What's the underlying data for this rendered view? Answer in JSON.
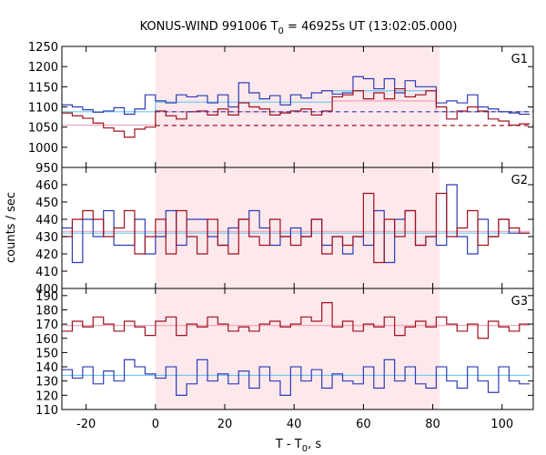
{
  "chart_data": {
    "type": "line",
    "title": {
      "prefix": "KONUS-WIND 991006 T",
      "sub": "0",
      "suffix": " = 46925s UT (13:02:05.000)"
    },
    "ylabel": "counts / sec",
    "xlabel": {
      "prefix": "T - T",
      "sub": "0",
      "suffix": ", s"
    },
    "xlim": [
      -27,
      109
    ],
    "x_ticks": [
      -20,
      0,
      20,
      40,
      60,
      80,
      100
    ],
    "x_tick_labels": [
      "-20",
      "0",
      "20",
      "40",
      "60",
      "80",
      "100"
    ],
    "shaded_interval": {
      "x": [
        0,
        82
      ],
      "color": "#fde8ec"
    },
    "bin_edges": [
      -27,
      -24,
      -21,
      -18,
      -15,
      -12,
      -9,
      -6,
      -3,
      0,
      3,
      6,
      9,
      12,
      15,
      18,
      21,
      24,
      27,
      30,
      33,
      36,
      39,
      42,
      45,
      48,
      51,
      54,
      57,
      60,
      63,
      66,
      69,
      72,
      75,
      78,
      81,
      84,
      87,
      90,
      93,
      96,
      99,
      102,
      105,
      108
    ],
    "colors": {
      "red_series": "#a0101c",
      "blue_series": "#2e3cb4",
      "light_blue": "#6cc8f0",
      "pink": "#f0a0b8",
      "frame": "#000000"
    },
    "panels": [
      {
        "label": "G1",
        "ylim": [
          950,
          1250
        ],
        "y_ticks": [
          950,
          1000,
          1050,
          1100,
          1150,
          1200,
          1250
        ],
        "y_tick_labels": [
          "950",
          "1000",
          "1050",
          "1100",
          "1150",
          "1200",
          "1250"
        ],
        "series": [
          {
            "color": "blue",
            "values": [
              1105,
              1100,
              1093,
              1087,
              1090,
              1098,
              1082,
              1095,
              1130,
              1115,
              1110,
              1130,
              1125,
              1128,
              1110,
              1130,
              1100,
              1160,
              1135,
              1120,
              1128,
              1105,
              1130,
              1122,
              1135,
              1140,
              1132,
              1135,
              1175,
              1170,
              1145,
              1170,
              1135,
              1165,
              1150,
              1150,
              1110,
              1115,
              1110,
              1130,
              1100,
              1095,
              1088,
              1085,
              1082
            ]
          },
          {
            "color": "red",
            "values": [
              1085,
              1078,
              1072,
              1060,
              1048,
              1040,
              1025,
              1045,
              1050,
              1090,
              1078,
              1070,
              1088,
              1090,
              1080,
              1095,
              1080,
              1110,
              1100,
              1095,
              1080,
              1085,
              1090,
              1095,
              1080,
              1090,
              1125,
              1130,
              1140,
              1120,
              1135,
              1120,
              1145,
              1125,
              1130,
              1140,
              1100,
              1070,
              1090,
              1100,
              1090,
              1070,
              1065,
              1055,
              1058
            ]
          }
        ],
        "background_fits": [
          {
            "color": "light_blue",
            "values": [
              1088,
              1088,
              1088,
              1088,
              1088,
              1088,
              1088,
              1088,
              1088,
              1112,
              1112,
              1112,
              1112,
              1112,
              1112,
              1112,
              1112,
              1112,
              1112,
              1112,
              1112,
              1112,
              1112,
              1112,
              1112,
              1112,
              1140,
              1140,
              1140,
              1140,
              1140,
              1140,
              1140,
              1140,
              1140,
              1140,
              1088,
              1088,
              1088,
              1088,
              1088,
              1088,
              1088,
              1088,
              1088
            ]
          },
          {
            "color": "pink",
            "values": [
              1055,
              1055,
              1055,
              1055,
              1055,
              1055,
              1055,
              1055,
              1055,
              1088,
              1088,
              1088,
              1088,
              1088,
              1088,
              1088,
              1088,
              1088,
              1088,
              1088,
              1088,
              1088,
              1088,
              1088,
              1088,
              1088,
              1115,
              1115,
              1115,
              1115,
              1115,
              1115,
              1115,
              1115,
              1115,
              1115,
              1088,
              1088,
              1088,
              1088,
              1088,
              1088,
              1088,
              1088,
              1088
            ]
          }
        ],
        "dashed_levels": [
          {
            "color": "blue",
            "y": 1088,
            "x": [
              0,
              109
            ]
          },
          {
            "color": "red",
            "y": 1054,
            "x": [
              0,
              109
            ]
          }
        ]
      },
      {
        "label": "G2",
        "ylim": [
          400,
          470
        ],
        "y_ticks": [
          400,
          410,
          420,
          430,
          440,
          450,
          460
        ],
        "y_tick_labels": [
          "400",
          "410",
          "420",
          "430",
          "440",
          "450",
          "460"
        ],
        "series": [
          {
            "color": "blue",
            "values": [
              435,
              415,
              440,
              430,
              445,
              425,
              425,
              440,
              420,
              430,
              445,
              425,
              440,
              440,
              430,
              425,
              435,
              440,
              445,
              435,
              425,
              430,
              435,
              430,
              440,
              425,
              430,
              420,
              430,
              425,
              445,
              415,
              440,
              445,
              425,
              430,
              425,
              460,
              430,
              420,
              440,
              430,
              440,
              432,
              432
            ]
          },
          {
            "color": "red",
            "values": [
              430,
              440,
              445,
              440,
              430,
              435,
              445,
              420,
              430,
              440,
              420,
              445,
              430,
              420,
              440,
              425,
              420,
              440,
              430,
              425,
              440,
              430,
              425,
              430,
              440,
              420,
              430,
              425,
              430,
              455,
              415,
              440,
              430,
              445,
              425,
              430,
              455,
              430,
              435,
              445,
              425,
              430,
              440,
              435,
              432
            ]
          }
        ],
        "background_fits": [
          {
            "color": "light_blue",
            "values": [
              432,
              432,
              432,
              432,
              432,
              432,
              432,
              432,
              432,
              432,
              432,
              432,
              432,
              432,
              432,
              432,
              432,
              432,
              432,
              432,
              432,
              432,
              432,
              432,
              432,
              432,
              432,
              432,
              432,
              432,
              432,
              432,
              432,
              432,
              432,
              432,
              432,
              432,
              432,
              432,
              432,
              432,
              432,
              432,
              432
            ]
          },
          {
            "color": "pink",
            "values": [
              433,
              433,
              433,
              433,
              433,
              433,
              433,
              433,
              433,
              433,
              433,
              433,
              433,
              433,
              433,
              433,
              433,
              433,
              433,
              433,
              433,
              433,
              433,
              433,
              433,
              433,
              433,
              433,
              433,
              433,
              433,
              433,
              433,
              433,
              433,
              433,
              433,
              433,
              433,
              433,
              433,
              433,
              433,
              433,
              433
            ]
          }
        ]
      },
      {
        "label": "G3",
        "ylim": [
          110,
          195
        ],
        "y_ticks": [
          110,
          120,
          130,
          140,
          150,
          160,
          170,
          180,
          190
        ],
        "y_tick_labels": [
          "110",
          "120",
          "130",
          "140",
          "150",
          "160",
          "170",
          "180",
          "190"
        ],
        "series": [
          {
            "color": "blue",
            "values": [
              138,
              132,
              140,
              128,
              137,
              130,
              145,
              140,
              135,
              132,
              140,
              120,
              128,
              145,
              130,
              135,
              128,
              137,
              125,
              140,
              130,
              120,
              140,
              130,
              138,
              125,
              135,
              130,
              128,
              140,
              125,
              145,
              130,
              140,
              128,
              125,
              140,
              130,
              125,
              140,
              130,
              122,
              140,
              130,
              128
            ]
          },
          {
            "color": "red",
            "values": [
              165,
              172,
              168,
              175,
              170,
              165,
              172,
              168,
              162,
              172,
              175,
              162,
              170,
              168,
              175,
              170,
              165,
              168,
              165,
              170,
              172,
              168,
              170,
              175,
              172,
              185,
              168,
              172,
              165,
              170,
              168,
              175,
              162,
              168,
              172,
              168,
              175,
              170,
              165,
              170,
              160,
              172,
              168,
              165,
              170
            ]
          }
        ],
        "background_fits": [
          {
            "color": "light_blue",
            "values": [
              134,
              134,
              134,
              134,
              134,
              134,
              134,
              134,
              134,
              134,
              134,
              134,
              134,
              134,
              134,
              134,
              134,
              134,
              134,
              134,
              134,
              134,
              134,
              134,
              134,
              134,
              134,
              134,
              134,
              134,
              134,
              134,
              134,
              134,
              134,
              134,
              134,
              134,
              134,
              134,
              134,
              134,
              134,
              134,
              134
            ]
          },
          {
            "color": "pink",
            "values": [
              169,
              169,
              169,
              169,
              169,
              169,
              169,
              169,
              169,
              169,
              169,
              169,
              169,
              169,
              169,
              169,
              169,
              169,
              169,
              169,
              169,
              169,
              169,
              169,
              169,
              169,
              169,
              169,
              169,
              169,
              169,
              169,
              169,
              169,
              169,
              169,
              169,
              169,
              169,
              169,
              169,
              169,
              169,
              169,
              169
            ]
          }
        ]
      }
    ]
  }
}
